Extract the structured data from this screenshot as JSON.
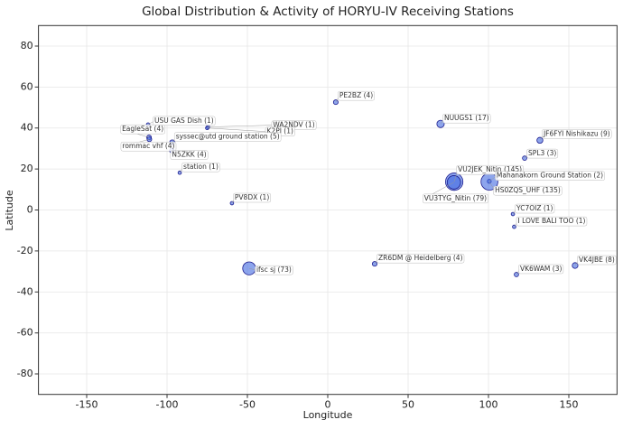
{
  "chart_data": {
    "type": "scatter",
    "title": "Global Distribution & Activity of HORYU-IV Receiving Stations",
    "x_label": "Longitude",
    "y_label": "Latitude",
    "xlim": [
      -180,
      180
    ],
    "ylim": [
      -90,
      90
    ],
    "xticks": [
      -150,
      -100,
      -50,
      0,
      50,
      100,
      150
    ],
    "yticks": [
      -80,
      -60,
      -40,
      -20,
      0,
      20,
      40,
      60,
      80
    ],
    "grid": true,
    "color": "#4169e1",
    "labels": [
      "USU GAS Dish (1)",
      "WA2NDV (1)",
      "K2PI (1)",
      "EagleSat (4)",
      "rommac vhf (4)",
      "syssec@utd ground station (5)",
      "N5ZKK (4)",
      "station (1)",
      "PV8DX (1)",
      "ifsc sj (73)",
      "PE2BZ (4)",
      "ZR6DM @ Heidelberg (4)",
      "NUUGS1 (17)",
      "VU2JEK_Nitin (145)",
      "VU3TYG_Nitin (79)",
      "Mahanakorn Ground Station (2)",
      "HS0ZQS_UHF (135)",
      "JF6FYI Nishikazu (9)",
      "SPL3 (3)",
      "YC7OIZ (1)",
      "I LOVE BALI TOO (1)",
      "VK4JBE (8)",
      "VK6WAM (3)"
    ],
    "x": [
      -111.8,
      -74.5,
      -75,
      -111.2,
      -111,
      -96.8,
      -97,
      -92.1,
      -59.6,
      -48.9,
      5,
      29.2,
      70.2,
      78.7,
      78.5,
      100.5,
      100.6,
      132,
      122.5,
      115.2,
      116,
      153.9,
      117.4
    ],
    "y": [
      41.7,
      40.5,
      40,
      35.4,
      34.5,
      33,
      29,
      18.2,
      3.3,
      -28.5,
      52.6,
      -26.3,
      42,
      13.8,
      13.5,
      14,
      13.8,
      34,
      25.3,
      -2,
      -8.2,
      -27.1,
      -31.5
    ],
    "sizes": [
      1,
      1,
      1,
      4,
      4,
      5,
      4,
      1,
      1,
      73,
      4,
      4,
      17,
      145,
      79,
      2,
      135,
      9,
      3,
      1,
      1,
      8,
      3
    ]
  }
}
